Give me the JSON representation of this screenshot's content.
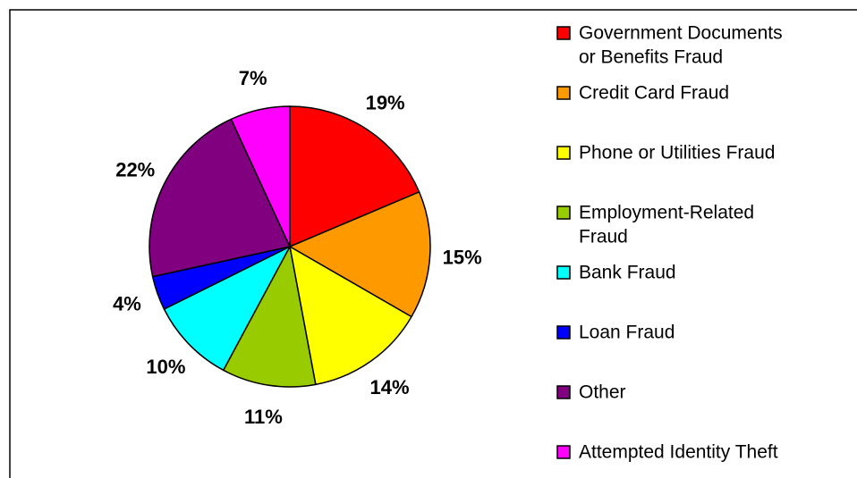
{
  "chart_data": {
    "type": "pie",
    "title": "",
    "labels": [
      "Government Documents or Benefits Fraud",
      "Credit Card Fraud",
      "Phone or Utilities Fraud",
      "Employment-Related Fraud",
      "Bank Fraud",
      "Loan Fraud",
      "Other",
      "Attempted Identity Theft"
    ],
    "legend_lines": [
      [
        "Government Documents",
        "or Benefits Fraud"
      ],
      [
        "Credit Card Fraud"
      ],
      [
        "Phone or Utilities Fraud"
      ],
      [
        "Employment-Related",
        "Fraud"
      ],
      [
        "Bank Fraud"
      ],
      [
        "Loan Fraud"
      ],
      [
        "Other"
      ],
      [
        "Attempted Identity Theft"
      ]
    ],
    "values": [
      19,
      15,
      14,
      11,
      10,
      4,
      22,
      7
    ],
    "value_labels": [
      "19%",
      "15%",
      "14%",
      "11%",
      "10%",
      "4%",
      "22%",
      "7%"
    ],
    "colors": [
      "#FF0000",
      "#FF9900",
      "#FFFF00",
      "#99CC00",
      "#00FFFF",
      "#0000FF",
      "#800080",
      "#FF00FF"
    ],
    "start_angle": "12 o'clock",
    "direction": "clockwise",
    "legend_position": "right"
  }
}
